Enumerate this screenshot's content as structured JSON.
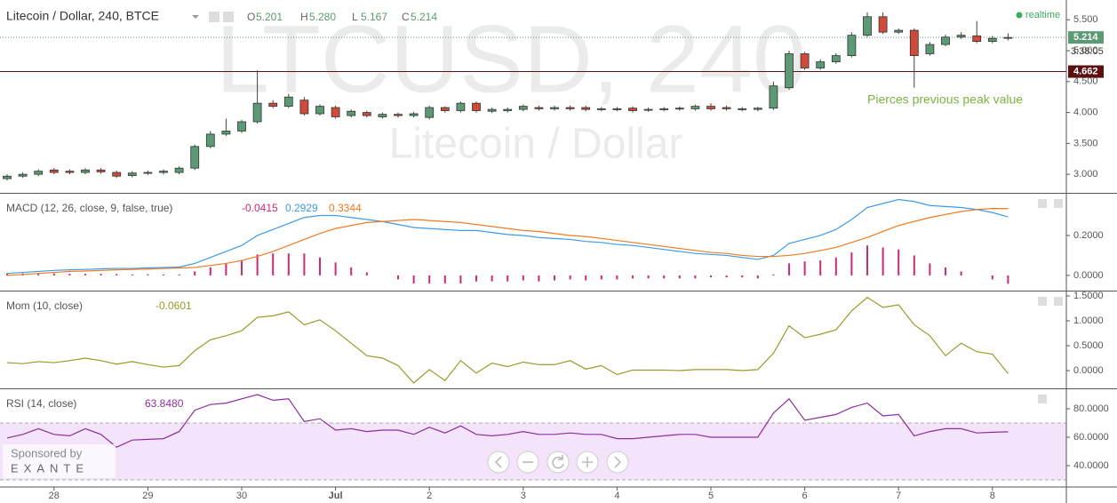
{
  "header": {
    "title": "Litecoin / Dollar, 240, BTCE",
    "ohlc": [
      {
        "key": "O",
        "value": "5.201"
      },
      {
        "key": "H",
        "value": "5.280"
      },
      {
        "key": "L",
        "value": "5.167"
      },
      {
        "key": "C",
        "value": "5.214"
      }
    ],
    "realtime": "realtime"
  },
  "watermark": {
    "symbol": "LTCUSD, 240",
    "name": "Litecoin / Dollar"
  },
  "sponsor": {
    "text": "Sponsored by",
    "brand": "EXANTE"
  },
  "chart_data": [
    {
      "type": "candlestick",
      "up_color": "#5b9a75",
      "down_color": "#d04a3a",
      "open": [
        2.93,
        2.97,
        3.0,
        3.07,
        3.05,
        3.03,
        3.07,
        3.03,
        2.98,
        3.02,
        3.03,
        3.03,
        3.1,
        3.45,
        3.65,
        3.7,
        3.85,
        4.15,
        4.1,
        4.2,
        3.98,
        4.08,
        3.95,
        4.0,
        3.93,
        3.97,
        3.95,
        3.92,
        4.08,
        4.03,
        4.15,
        4.02,
        4.03,
        4.05,
        4.08,
        4.06,
        4.08,
        4.08,
        4.05,
        4.05,
        4.07,
        4.04,
        4.05,
        4.06,
        4.06,
        4.1,
        4.08,
        4.05,
        4.05,
        4.07,
        4.4,
        4.95,
        4.72,
        4.82,
        4.92,
        5.25,
        5.55,
        5.3,
        5.33,
        4.95,
        5.1,
        5.22,
        5.24,
        5.15,
        5.201
      ],
      "high": [
        3.0,
        3.03,
        3.08,
        3.1,
        3.08,
        3.1,
        3.1,
        3.06,
        3.05,
        3.06,
        3.08,
        3.13,
        3.48,
        3.7,
        3.9,
        3.88,
        4.68,
        4.2,
        4.3,
        4.25,
        4.13,
        4.11,
        4.05,
        4.03,
        4.0,
        4.0,
        4.01,
        4.11,
        4.1,
        4.18,
        4.18,
        4.08,
        4.08,
        4.13,
        4.11,
        4.11,
        4.11,
        4.11,
        4.09,
        4.09,
        4.1,
        4.08,
        4.09,
        4.1,
        4.13,
        4.15,
        4.11,
        4.09,
        4.09,
        4.5,
        5.0,
        4.98,
        4.86,
        4.96,
        5.3,
        5.62,
        5.62,
        5.36,
        5.36,
        5.14,
        5.26,
        5.3,
        5.48,
        5.24,
        5.28
      ],
      "low": [
        2.9,
        2.94,
        2.97,
        3.0,
        3.0,
        3.0,
        3.01,
        2.94,
        2.95,
        2.99,
        3.0,
        3.0,
        3.07,
        3.42,
        3.62,
        3.67,
        3.82,
        4.07,
        4.07,
        3.95,
        3.95,
        3.9,
        3.92,
        3.92,
        3.9,
        3.92,
        3.92,
        3.89,
        4.0,
        4.0,
        4.0,
        3.99,
        4.0,
        4.02,
        4.03,
        4.03,
        4.03,
        4.02,
        4.02,
        4.02,
        4.0,
        4.01,
        4.02,
        4.03,
        4.03,
        4.03,
        4.03,
        4.02,
        4.02,
        4.04,
        4.37,
        4.69,
        4.69,
        4.79,
        4.89,
        5.22,
        5.27,
        5.27,
        4.4,
        4.92,
        5.07,
        5.19,
        5.12,
        5.12,
        5.167
      ],
      "close": [
        2.97,
        3.0,
        3.05,
        3.03,
        3.03,
        3.07,
        3.04,
        2.97,
        3.02,
        3.03,
        3.05,
        3.1,
        3.45,
        3.65,
        3.7,
        3.85,
        4.15,
        4.1,
        4.25,
        3.98,
        4.1,
        3.93,
        4.02,
        3.95,
        3.97,
        3.95,
        3.98,
        4.08,
        4.03,
        4.15,
        4.03,
        4.05,
        4.05,
        4.1,
        4.06,
        4.08,
        4.06,
        4.05,
        4.06,
        4.06,
        4.03,
        4.05,
        4.06,
        4.07,
        4.1,
        4.06,
        4.06,
        4.06,
        4.07,
        4.43,
        4.95,
        4.72,
        4.82,
        4.92,
        5.25,
        5.55,
        5.3,
        5.33,
        4.92,
        5.1,
        5.22,
        5.25,
        5.15,
        5.2,
        5.214
      ],
      "ylim": [
        2.7,
        5.82
      ],
      "yticks": [
        {
          "value": 3,
          "label": "3.000"
        },
        {
          "value": 3.5,
          "label": "3.500"
        },
        {
          "value": 4,
          "label": "4.000"
        },
        {
          "value": 4.5,
          "label": "4.500"
        },
        {
          "value": 5,
          "label": "5.000"
        },
        {
          "value": 5.5,
          "label": "5.500"
        }
      ],
      "last_price": {
        "value": 5.214,
        "label": "5.214",
        "color": "#5b9a75"
      },
      "countdown": "3:38:05",
      "peak_line": {
        "value": 4.662,
        "label": "4.662",
        "color": "#5a1010"
      },
      "annotation": "Pierces previous peak value",
      "xticks": [
        {
          "value": 3,
          "label": "28"
        },
        {
          "value": 9,
          "label": "29"
        },
        {
          "value": 15,
          "label": "30"
        },
        {
          "value": 21,
          "label": "Jul"
        },
        {
          "value": 27,
          "label": "2"
        },
        {
          "value": 33,
          "label": "3"
        },
        {
          "value": 39,
          "label": "4"
        },
        {
          "value": 45,
          "label": "5"
        },
        {
          "value": 51,
          "label": "6"
        },
        {
          "value": 57,
          "label": "7"
        },
        {
          "value": 63,
          "label": "8"
        }
      ]
    },
    {
      "type": "indicator",
      "title": "MACD (12, 26, close, 9, false, true)",
      "ylim": [
        -0.076,
        0.409
      ],
      "yticks": [
        {
          "value": 0,
          "label": "0.0000"
        },
        {
          "value": 0.2,
          "label": "0.2000"
        }
      ],
      "series": [
        {
          "kind": "bar",
          "color": "#cc2a72",
          "last_label": "-0.0415",
          "values": [
            0.01,
            0.01,
            0.01,
            0.01,
            0.008,
            0.008,
            0.008,
            0.007,
            0.005,
            0.006,
            0.005,
            0.005,
            0.02,
            0.04,
            0.06,
            0.075,
            0.105,
            0.11,
            0.11,
            0.11,
            0.09,
            0.065,
            0.04,
            0.015,
            0,
            -0.02,
            -0.04,
            -0.04,
            -0.04,
            -0.04,
            -0.03,
            -0.03,
            -0.03,
            -0.025,
            -0.03,
            -0.025,
            -0.02,
            -0.025,
            -0.02,
            -0.02,
            -0.015,
            -0.015,
            -0.015,
            -0.015,
            -0.015,
            -0.01,
            -0.01,
            -0.01,
            -0.015,
            0.005,
            0.06,
            0.07,
            0.075,
            0.09,
            0.115,
            0.15,
            0.14,
            0.13,
            0.1,
            0.06,
            0.04,
            0.02,
            0,
            -0.02,
            -0.0415
          ]
        },
        {
          "kind": "line",
          "color": "#3d9be9",
          "last_label": "0.2929",
          "values": [
            0.01,
            0.015,
            0.02,
            0.025,
            0.028,
            0.03,
            0.033,
            0.035,
            0.035,
            0.038,
            0.04,
            0.042,
            0.06,
            0.09,
            0.12,
            0.15,
            0.2,
            0.23,
            0.26,
            0.29,
            0.3,
            0.3,
            0.29,
            0.28,
            0.27,
            0.255,
            0.24,
            0.235,
            0.23,
            0.225,
            0.225,
            0.215,
            0.205,
            0.2,
            0.19,
            0.185,
            0.18,
            0.17,
            0.165,
            0.155,
            0.15,
            0.14,
            0.13,
            0.12,
            0.11,
            0.105,
            0.1,
            0.09,
            0.08,
            0.1,
            0.16,
            0.18,
            0.2,
            0.23,
            0.28,
            0.34,
            0.36,
            0.38,
            0.37,
            0.35,
            0.345,
            0.34,
            0.33,
            0.315,
            0.2929
          ]
        },
        {
          "kind": "line",
          "color": "#f07b21",
          "last_label": "0.3344",
          "values": [
            0,
            0.005,
            0.01,
            0.015,
            0.02,
            0.022,
            0.025,
            0.028,
            0.03,
            0.032,
            0.035,
            0.037,
            0.04,
            0.05,
            0.06,
            0.075,
            0.095,
            0.12,
            0.15,
            0.18,
            0.21,
            0.235,
            0.25,
            0.265,
            0.27,
            0.275,
            0.28,
            0.275,
            0.27,
            0.265,
            0.255,
            0.245,
            0.235,
            0.225,
            0.22,
            0.21,
            0.2,
            0.195,
            0.185,
            0.175,
            0.165,
            0.155,
            0.145,
            0.135,
            0.125,
            0.115,
            0.11,
            0.1,
            0.095,
            0.095,
            0.1,
            0.11,
            0.125,
            0.14,
            0.165,
            0.19,
            0.22,
            0.25,
            0.27,
            0.29,
            0.305,
            0.32,
            0.33,
            0.335,
            0.3344
          ]
        }
      ]
    },
    {
      "type": "indicator",
      "title": "Mom (10, close)",
      "ylim": [
        -0.357,
        1.589
      ],
      "yticks": [
        {
          "value": 0,
          "label": "0.0000"
        },
        {
          "value": 0.5,
          "label": "0.5000"
        },
        {
          "value": 1,
          "label": "1.0000"
        },
        {
          "value": 1.5,
          "label": "1.5000"
        }
      ],
      "series": [
        {
          "kind": "line",
          "color": "#9a9a2a",
          "last_label": "-0.0601",
          "values": [
            0.16,
            0.14,
            0.18,
            0.16,
            0.2,
            0.25,
            0.2,
            0.13,
            0.18,
            0.12,
            0.07,
            0.1,
            0.4,
            0.62,
            0.7,
            0.8,
            1.07,
            1.1,
            1.18,
            0.92,
            1.02,
            0.8,
            0.55,
            0.3,
            0.25,
            0.1,
            -0.25,
            0.02,
            -0.2,
            0.2,
            -0.05,
            0.15,
            0.08,
            0.17,
            0.12,
            0.12,
            0.2,
            0.03,
            0.1,
            -0.08,
            0.01,
            0.01,
            0.01,
            0,
            0.02,
            0.02,
            0.02,
            0,
            0.02,
            0.35,
            0.9,
            0.66,
            0.73,
            0.82,
            1.2,
            1.47,
            1.27,
            1.32,
            0.92,
            0.7,
            0.3,
            0.55,
            0.38,
            0.33,
            -0.0601
          ]
        }
      ]
    },
    {
      "type": "indicator",
      "title": "RSI (14, close)",
      "ylim": [
        25,
        93.75
      ],
      "yticks": [
        {
          "value": 40,
          "label": "40.0000"
        },
        {
          "value": 60,
          "label": "60.0000"
        },
        {
          "value": 80,
          "label": "80.0000"
        }
      ],
      "band": [
        30,
        70
      ],
      "band_color": "#f3e4fb",
      "series": [
        {
          "kind": "line",
          "color": "#8e2e9e",
          "last_label": "63.8480",
          "values": [
            59.5,
            62,
            66,
            62,
            61,
            66,
            62,
            53,
            58,
            58.5,
            59,
            64,
            79,
            83,
            84,
            87,
            90,
            86,
            87,
            71,
            73,
            65,
            66,
            64,
            65,
            65,
            62,
            67,
            63,
            68,
            62,
            61,
            62,
            64,
            62,
            62,
            63,
            62,
            62,
            59,
            59,
            60,
            61,
            62,
            62,
            60,
            60,
            60,
            60,
            77,
            87,
            72,
            74,
            76,
            81,
            84,
            75,
            76,
            61,
            64,
            66,
            66,
            63,
            63.5,
            63.848
          ]
        }
      ]
    }
  ]
}
